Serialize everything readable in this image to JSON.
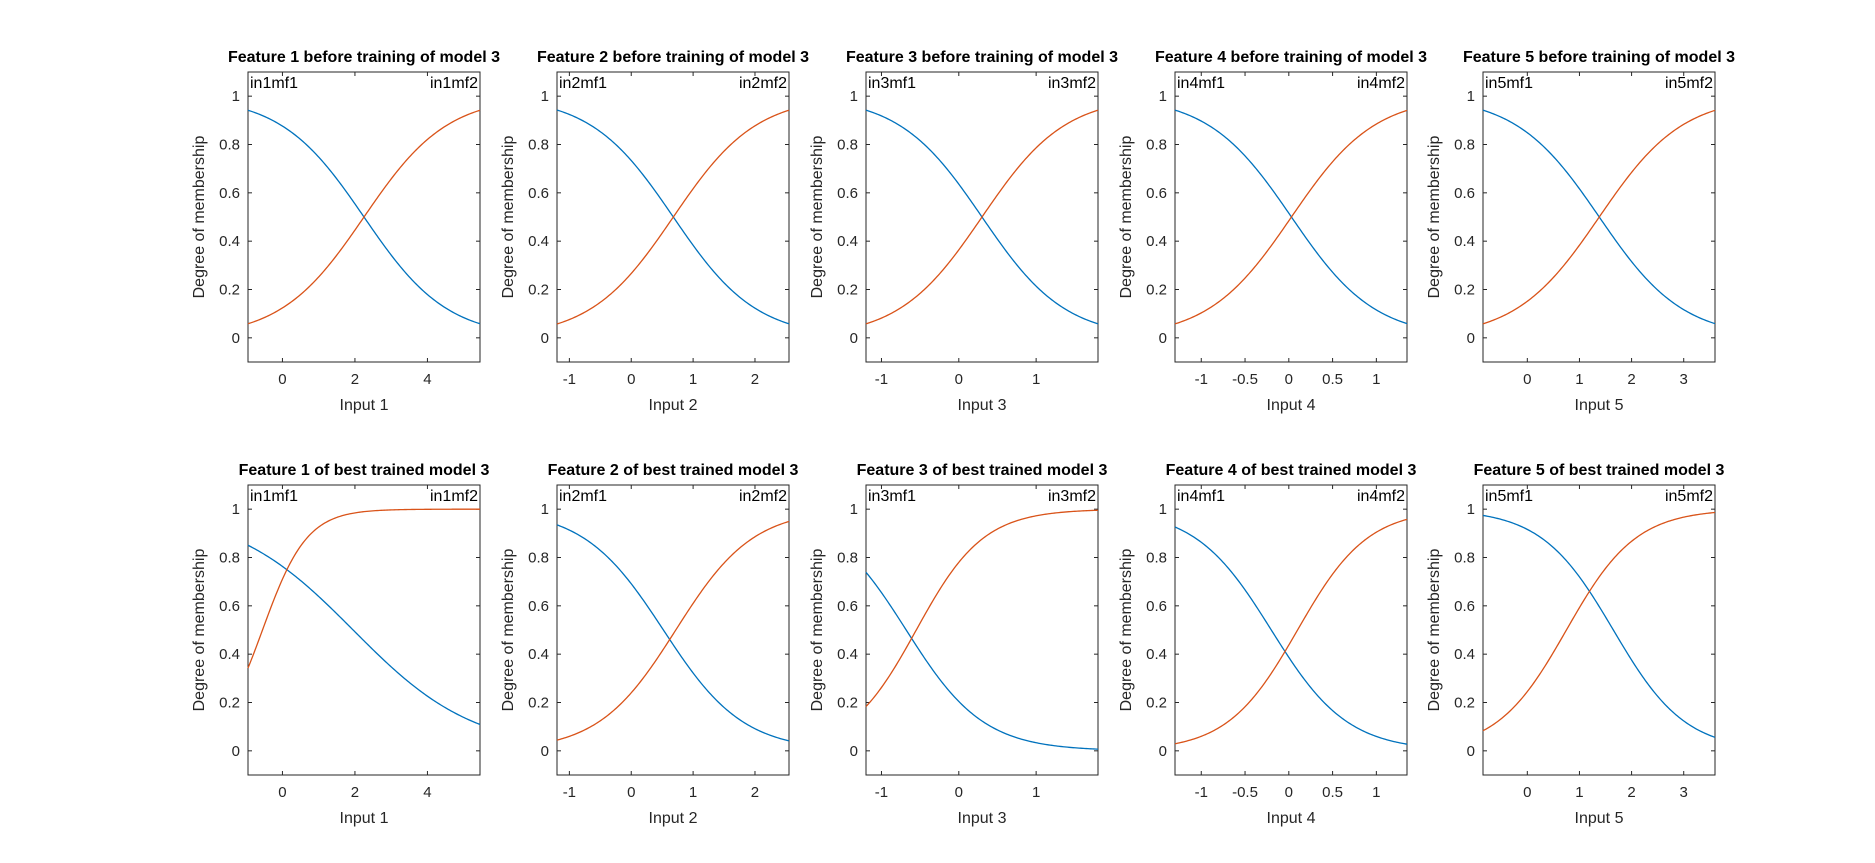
{
  "figure": {
    "colors": {
      "mf1": "#0072BD",
      "mf2": "#D95319",
      "axes": "#262626",
      "background": "#ffffff"
    }
  },
  "chart_data": [
    {
      "type": "line",
      "title": "Feature 1 before training of model 3",
      "xlabel": "Input 1",
      "ylabel": "Degree of membership",
      "xlim": [
        -0.95,
        5.45
      ],
      "ylim": [
        -0.1,
        1.1
      ],
      "xticks": [
        0,
        2,
        4
      ],
      "xtick_labels": [
        "0",
        "2",
        "4"
      ],
      "yticks": [
        0,
        0.2,
        0.4,
        0.6,
        0.8,
        1
      ],
      "ytick_labels": [
        "0",
        "0.2",
        "0.4",
        "0.6",
        "0.8",
        "1"
      ],
      "series": [
        {
          "name": "in1mf1",
          "shape": "decreasing-sigmoid",
          "center": 2.25,
          "slope": 0.87
        },
        {
          "name": "in1mf2",
          "shape": "increasing-sigmoid",
          "center": 2.25,
          "slope": 0.87
        }
      ]
    },
    {
      "type": "line",
      "title": "Feature 2 before training of model 3",
      "xlabel": "Input 2",
      "ylabel": "Degree of membership",
      "xlim": [
        -1.2,
        2.55
      ],
      "ylim": [
        -0.1,
        1.1
      ],
      "xticks": [
        -1,
        0,
        1,
        2
      ],
      "xtick_labels": [
        "-1",
        "0",
        "1",
        "2"
      ],
      "yticks": [
        0,
        0.2,
        0.4,
        0.6,
        0.8,
        1
      ],
      "ytick_labels": [
        "0",
        "0.2",
        "0.4",
        "0.6",
        "0.8",
        "1"
      ],
      "series": [
        {
          "name": "in2mf1",
          "shape": "decreasing-sigmoid",
          "center": 0.68,
          "slope": 1.49
        },
        {
          "name": "in2mf2",
          "shape": "increasing-sigmoid",
          "center": 0.68,
          "slope": 1.49
        }
      ]
    },
    {
      "type": "line",
      "title": "Feature 3 before training of model 3",
      "xlabel": "Input 3",
      "ylabel": "Degree of membership",
      "xlim": [
        -1.2,
        1.8
      ],
      "ylim": [
        -0.1,
        1.1
      ],
      "xticks": [
        -1,
        0,
        1
      ],
      "xtick_labels": [
        "-1",
        "0",
        "1"
      ],
      "yticks": [
        0,
        0.2,
        0.4,
        0.6,
        0.8,
        1
      ],
      "ytick_labels": [
        "0",
        "0.2",
        "0.4",
        "0.6",
        "0.8",
        "1"
      ],
      "series": [
        {
          "name": "in3mf1",
          "shape": "decreasing-sigmoid",
          "center": 0.3,
          "slope": 1.86
        },
        {
          "name": "in3mf2",
          "shape": "increasing-sigmoid",
          "center": 0.3,
          "slope": 1.86
        }
      ]
    },
    {
      "type": "line",
      "title": "Feature 4 before training of model 3",
      "xlabel": "Input 4",
      "ylabel": "Degree of membership",
      "xlim": [
        -1.3,
        1.35
      ],
      "ylim": [
        -0.1,
        1.1
      ],
      "xticks": [
        -1,
        -0.5,
        0,
        0.5,
        1
      ],
      "xtick_labels": [
        "-1",
        "-0.5",
        "0",
        "0.5",
        "1"
      ],
      "yticks": [
        0,
        0.2,
        0.4,
        0.6,
        0.8,
        1
      ],
      "ytick_labels": [
        "0",
        "0.2",
        "0.4",
        "0.6",
        "0.8",
        "1"
      ],
      "series": [
        {
          "name": "in4mf1",
          "shape": "decreasing-sigmoid",
          "center": 0.03,
          "slope": 2.1
        },
        {
          "name": "in4mf2",
          "shape": "increasing-sigmoid",
          "center": 0.03,
          "slope": 2.1
        }
      ]
    },
    {
      "type": "line",
      "title": "Feature 5 before training of model 3",
      "xlabel": "Input 5",
      "ylabel": "Degree of membership",
      "xlim": [
        -0.85,
        3.6
      ],
      "ylim": [
        -0.1,
        1.1
      ],
      "xticks": [
        0,
        1,
        2,
        3
      ],
      "xtick_labels": [
        "0",
        "1",
        "2",
        "3"
      ],
      "yticks": [
        0,
        0.2,
        0.4,
        0.6,
        0.8,
        1
      ],
      "ytick_labels": [
        "0",
        "0.2",
        "0.4",
        "0.6",
        "0.8",
        "1"
      ],
      "series": [
        {
          "name": "in5mf1",
          "shape": "decreasing-sigmoid",
          "center": 1.38,
          "slope": 1.25
        },
        {
          "name": "in5mf2",
          "shape": "increasing-sigmoid",
          "center": 1.38,
          "slope": 1.25
        }
      ]
    },
    {
      "type": "line",
      "title": "Feature 1 of best trained model 3",
      "xlabel": "Input 1",
      "ylabel": "Degree of membership",
      "xlim": [
        -0.95,
        5.45
      ],
      "ylim": [
        -0.1,
        1.1
      ],
      "xticks": [
        0,
        2,
        4
      ],
      "xtick_labels": [
        "0",
        "2",
        "4"
      ],
      "yticks": [
        0,
        0.2,
        0.4,
        0.6,
        0.8,
        1
      ],
      "ytick_labels": [
        "0",
        "0.2",
        "0.4",
        "0.6",
        "0.8",
        "1"
      ],
      "series": [
        {
          "name": "in1mf1",
          "shape": "decreasing-sigmoid",
          "center": 1.95,
          "slope": 0.6
        },
        {
          "name": "in1mf2",
          "shape": "increasing-sigmoid",
          "center": -0.55,
          "slope": 1.63
        }
      ]
    },
    {
      "type": "line",
      "title": "Feature 2 of best trained model 3",
      "xlabel": "Input 2",
      "ylabel": "Degree of membership",
      "xlim": [
        -1.2,
        2.55
      ],
      "ylim": [
        -0.1,
        1.1
      ],
      "xticks": [
        -1,
        0,
        1,
        2
      ],
      "xtick_labels": [
        "-1",
        "0",
        "1",
        "2"
      ],
      "yticks": [
        0,
        0.2,
        0.4,
        0.6,
        0.8,
        1
      ],
      "ytick_labels": [
        "0",
        "0.2",
        "0.4",
        "0.6",
        "0.8",
        "1"
      ],
      "series": [
        {
          "name": "in2mf1",
          "shape": "decreasing-sigmoid",
          "center": 0.52,
          "slope": 1.55
        },
        {
          "name": "in2mf2",
          "shape": "increasing-sigmoid",
          "center": 0.72,
          "slope": 1.6
        }
      ]
    },
    {
      "type": "line",
      "title": "Feature 3 of best trained model 3",
      "xlabel": "Input 3",
      "ylabel": "Degree of membership",
      "xlim": [
        -1.2,
        1.8
      ],
      "ylim": [
        -0.1,
        1.1
      ],
      "xticks": [
        -1,
        0,
        1
      ],
      "xtick_labels": [
        "-1",
        "0",
        "1"
      ],
      "yticks": [
        0,
        0.2,
        0.4,
        0.6,
        0.8,
        1
      ],
      "ytick_labels": [
        "0",
        "0.2",
        "0.4",
        "0.6",
        "0.8",
        "1"
      ],
      "series": [
        {
          "name": "in3mf1",
          "shape": "decreasing-sigmoid",
          "center": -0.68,
          "slope": 2.0
        },
        {
          "name": "in3mf2",
          "shape": "increasing-sigmoid",
          "center": -0.55,
          "slope": 2.3
        }
      ]
    },
    {
      "type": "line",
      "title": "Feature 4 of best trained model 3",
      "xlabel": "Input 4",
      "ylabel": "Degree of membership",
      "xlim": [
        -1.3,
        1.35
      ],
      "ylim": [
        -0.1,
        1.1
      ],
      "xticks": [
        -1,
        -0.5,
        0,
        0.5,
        1
      ],
      "xtick_labels": [
        "-1",
        "-0.5",
        "0",
        "0.5",
        "1"
      ],
      "yticks": [
        0,
        0.2,
        0.4,
        0.6,
        0.8,
        1
      ],
      "ytick_labels": [
        "0",
        "0.2",
        "0.4",
        "0.6",
        "0.8",
        "1"
      ],
      "series": [
        {
          "name": "in4mf1",
          "shape": "decreasing-sigmoid",
          "center": -0.2,
          "slope": 2.3
        },
        {
          "name": "in4mf2",
          "shape": "increasing-sigmoid",
          "center": 0.1,
          "slope": 2.5
        }
      ]
    },
    {
      "type": "line",
      "title": "Feature 5 of best trained model 3",
      "xlabel": "Input 5",
      "ylabel": "Degree of membership",
      "xlim": [
        -0.85,
        3.6
      ],
      "ylim": [
        -0.1,
        1.1
      ],
      "xticks": [
        0,
        1,
        2,
        3
      ],
      "xtick_labels": [
        "0",
        "1",
        "2",
        "3"
      ],
      "yticks": [
        0,
        0.2,
        0.4,
        0.6,
        0.8,
        1
      ],
      "ytick_labels": [
        "0",
        "0.2",
        "0.4",
        "0.6",
        "0.8",
        "1"
      ],
      "series": [
        {
          "name": "in5mf1",
          "shape": "decreasing-sigmoid",
          "center": 1.65,
          "slope": 1.45
        },
        {
          "name": "in5mf2",
          "shape": "increasing-sigmoid",
          "center": 0.75,
          "slope": 1.5
        }
      ]
    }
  ]
}
